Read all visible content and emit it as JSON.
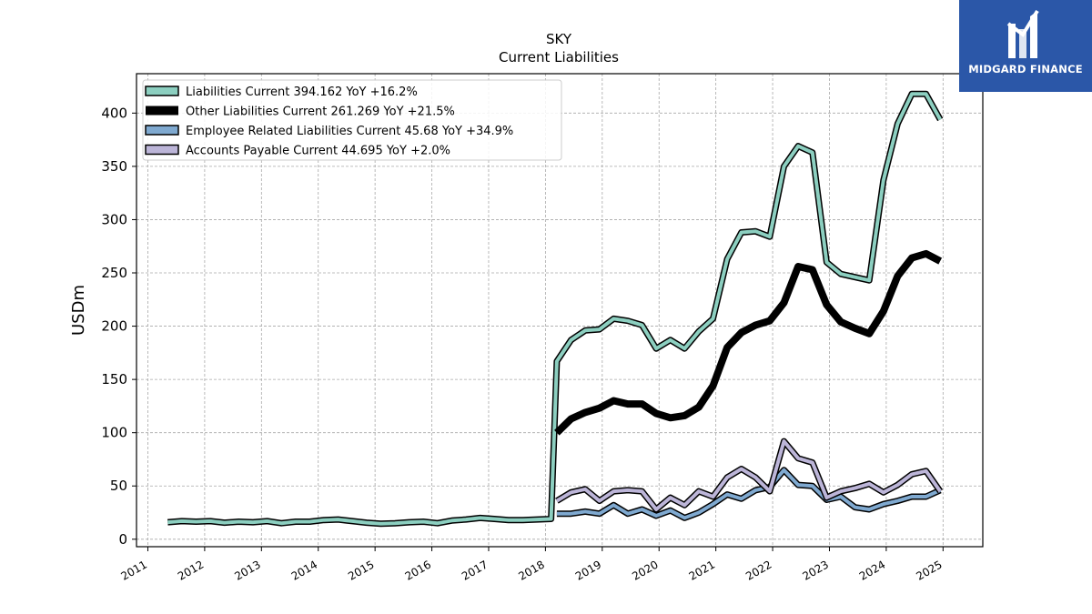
{
  "chart_data": {
    "type": "line",
    "title": "SKY",
    "subtitle": "Current  Liabilities",
    "xlabel": "",
    "ylabel": "USDm",
    "xlim": [
      2010.8,
      2025.7
    ],
    "ylim": [
      -7,
      437
    ],
    "x_ticks": [
      "2011",
      "2012",
      "2013",
      "2014",
      "2015",
      "2016",
      "2017",
      "2018",
      "2019",
      "2020",
      "2021",
      "2022",
      "2023",
      "2024",
      "2025"
    ],
    "y_ticks": [
      0,
      50,
      100,
      150,
      200,
      250,
      300,
      350,
      400
    ],
    "grid": true,
    "legend_position": "top-left",
    "series": [
      {
        "name": "Liabilities Current  394.162 YoY +16.2%",
        "color": "#8ccfc0",
        "style": "outlined",
        "points": [
          [
            2011.35,
            16
          ],
          [
            2011.6,
            17
          ],
          [
            2011.85,
            16.5
          ],
          [
            2012.1,
            17
          ],
          [
            2012.35,
            15.5
          ],
          [
            2012.6,
            16.5
          ],
          [
            2012.85,
            16
          ],
          [
            2013.1,
            17
          ],
          [
            2013.35,
            15
          ],
          [
            2013.6,
            16.5
          ],
          [
            2013.85,
            16.5
          ],
          [
            2014.1,
            18
          ],
          [
            2014.35,
            18.5
          ],
          [
            2014.6,
            17
          ],
          [
            2014.85,
            15.5
          ],
          [
            2015.1,
            14.5
          ],
          [
            2015.35,
            15
          ],
          [
            2015.6,
            16
          ],
          [
            2015.85,
            16.5
          ],
          [
            2016.1,
            15
          ],
          [
            2016.35,
            17.5
          ],
          [
            2016.6,
            18.5
          ],
          [
            2016.85,
            20
          ],
          [
            2017.1,
            19
          ],
          [
            2017.35,
            18
          ],
          [
            2017.6,
            18
          ],
          [
            2017.85,
            18.5
          ],
          [
            2018.1,
            19
          ],
          [
            2018.2,
            167
          ],
          [
            2018.45,
            187
          ],
          [
            2018.7,
            196
          ],
          [
            2018.95,
            197
          ],
          [
            2019.2,
            207
          ],
          [
            2019.45,
            205
          ],
          [
            2019.7,
            201
          ],
          [
            2019.95,
            179
          ],
          [
            2020.2,
            187
          ],
          [
            2020.45,
            179
          ],
          [
            2020.7,
            195
          ],
          [
            2020.95,
            207
          ],
          [
            2021.2,
            263
          ],
          [
            2021.45,
            288
          ],
          [
            2021.7,
            289
          ],
          [
            2021.95,
            284
          ],
          [
            2022.2,
            350
          ],
          [
            2022.45,
            369
          ],
          [
            2022.7,
            363
          ],
          [
            2022.95,
            260
          ],
          [
            2023.2,
            249
          ],
          [
            2023.45,
            246
          ],
          [
            2023.7,
            243
          ],
          [
            2023.95,
            337
          ],
          [
            2024.2,
            390
          ],
          [
            2024.45,
            418
          ],
          [
            2024.7,
            418
          ],
          [
            2024.95,
            394
          ]
        ]
      },
      {
        "name": "Other Liabilities Current  261.269 YoY +21.5%",
        "color": "#000000",
        "style": "solid",
        "points": [
          [
            2018.2,
            100
          ],
          [
            2018.45,
            113
          ],
          [
            2018.7,
            119
          ],
          [
            2018.95,
            123
          ],
          [
            2019.2,
            130
          ],
          [
            2019.45,
            127
          ],
          [
            2019.7,
            127
          ],
          [
            2019.95,
            118
          ],
          [
            2020.2,
            114
          ],
          [
            2020.45,
            116
          ],
          [
            2020.7,
            124
          ],
          [
            2020.95,
            144
          ],
          [
            2021.2,
            180
          ],
          [
            2021.45,
            194
          ],
          [
            2021.7,
            201
          ],
          [
            2021.95,
            205
          ],
          [
            2022.2,
            222
          ],
          [
            2022.45,
            256
          ],
          [
            2022.7,
            253
          ],
          [
            2022.95,
            220
          ],
          [
            2023.2,
            204
          ],
          [
            2023.45,
            198
          ],
          [
            2023.7,
            193
          ],
          [
            2023.95,
            214
          ],
          [
            2024.2,
            247
          ],
          [
            2024.45,
            264
          ],
          [
            2024.7,
            268
          ],
          [
            2024.95,
            261
          ]
        ]
      },
      {
        "name": "Employee Related Liabilities Current  45.68 YoY +34.9%",
        "color": "#7fa9d0",
        "style": "outlined",
        "points": [
          [
            2018.2,
            24
          ],
          [
            2018.45,
            24
          ],
          [
            2018.7,
            26
          ],
          [
            2018.95,
            24
          ],
          [
            2019.2,
            32
          ],
          [
            2019.45,
            24
          ],
          [
            2019.7,
            28
          ],
          [
            2019.95,
            22
          ],
          [
            2020.2,
            27
          ],
          [
            2020.45,
            20
          ],
          [
            2020.7,
            25
          ],
          [
            2020.95,
            33
          ],
          [
            2021.2,
            42
          ],
          [
            2021.45,
            38
          ],
          [
            2021.7,
            46
          ],
          [
            2021.95,
            49
          ],
          [
            2022.2,
            65
          ],
          [
            2022.45,
            51
          ],
          [
            2022.7,
            50
          ],
          [
            2022.95,
            37
          ],
          [
            2023.2,
            40
          ],
          [
            2023.45,
            30
          ],
          [
            2023.7,
            28
          ],
          [
            2023.95,
            33
          ],
          [
            2024.2,
            36
          ],
          [
            2024.45,
            40
          ],
          [
            2024.7,
            40
          ],
          [
            2024.95,
            46
          ]
        ]
      },
      {
        "name": "Accounts Payable Current  44.695 YoY +2.0%",
        "color": "#bcb5d8",
        "style": "outlined",
        "points": [
          [
            2018.2,
            36
          ],
          [
            2018.45,
            44
          ],
          [
            2018.7,
            47
          ],
          [
            2018.95,
            36
          ],
          [
            2019.2,
            45
          ],
          [
            2019.45,
            46
          ],
          [
            2019.7,
            45
          ],
          [
            2019.95,
            28
          ],
          [
            2020.2,
            39
          ],
          [
            2020.45,
            32
          ],
          [
            2020.7,
            45
          ],
          [
            2020.95,
            40
          ],
          [
            2021.2,
            58
          ],
          [
            2021.45,
            66
          ],
          [
            2021.7,
            58
          ],
          [
            2021.95,
            45
          ],
          [
            2022.2,
            92
          ],
          [
            2022.45,
            76
          ],
          [
            2022.7,
            72
          ],
          [
            2022.95,
            39
          ],
          [
            2023.2,
            45
          ],
          [
            2023.45,
            48
          ],
          [
            2023.7,
            52
          ],
          [
            2023.95,
            44
          ],
          [
            2024.2,
            51
          ],
          [
            2024.45,
            61
          ],
          [
            2024.7,
            64
          ],
          [
            2024.95,
            45
          ]
        ]
      }
    ]
  },
  "logo": {
    "text": "MIDGARD FINANCE",
    "background": "#2b57a8"
  }
}
